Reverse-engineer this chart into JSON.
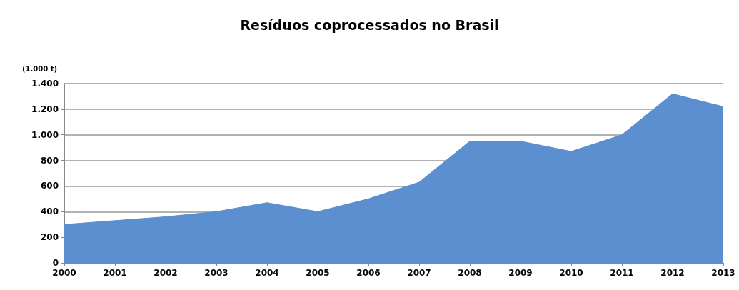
{
  "chart_data": {
    "type": "area",
    "title": "Resíduos coprocessados no Brasil",
    "ylabel": "(1.000 t)",
    "categories": [
      "2000",
      "2001",
      "2002",
      "2003",
      "2004",
      "2005",
      "2006",
      "2007",
      "2008",
      "2009",
      "2010",
      "2011",
      "2012",
      "2013"
    ],
    "values": [
      300,
      330,
      360,
      400,
      470,
      400,
      500,
      630,
      950,
      950,
      870,
      1000,
      1320,
      1220
    ],
    "color": "#5b8fcf",
    "ylim": [
      0,
      1400
    ],
    "yticks": [
      0,
      200,
      400,
      600,
      800,
      {
        "value": 1000,
        "label": "1.000"
      },
      {
        "value": 1200,
        "label": "1.200"
      },
      {
        "value": 1400,
        "label": "1.400"
      }
    ],
    "grid": "y"
  }
}
